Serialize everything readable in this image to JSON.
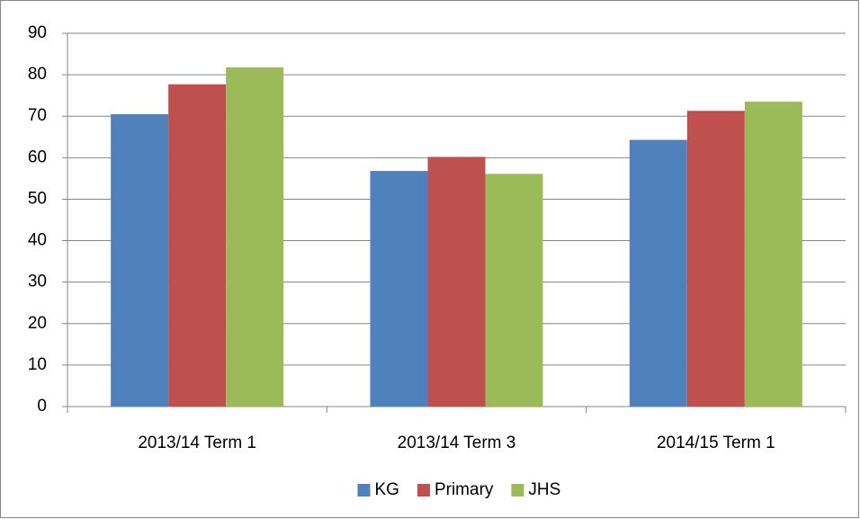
{
  "chart_data": {
    "type": "bar",
    "categories": [
      "2013/14 Term 1",
      "2013/14 Term 3",
      "2014/15 Term 1"
    ],
    "series": [
      {
        "name": "KG",
        "color": "#4f81bd",
        "values": [
          70.5,
          56.8,
          64.3
        ]
      },
      {
        "name": "Primary",
        "color": "#c0504d",
        "values": [
          77.7,
          60.2,
          71.3
        ]
      },
      {
        "name": "JHS",
        "color": "#9bbb59",
        "values": [
          81.8,
          56.1,
          73.5
        ]
      }
    ],
    "ylim": [
      0,
      90
    ],
    "yticks": [
      0,
      10,
      20,
      30,
      40,
      50,
      60,
      70,
      80,
      90
    ],
    "grid": true,
    "legend": "bottom"
  }
}
